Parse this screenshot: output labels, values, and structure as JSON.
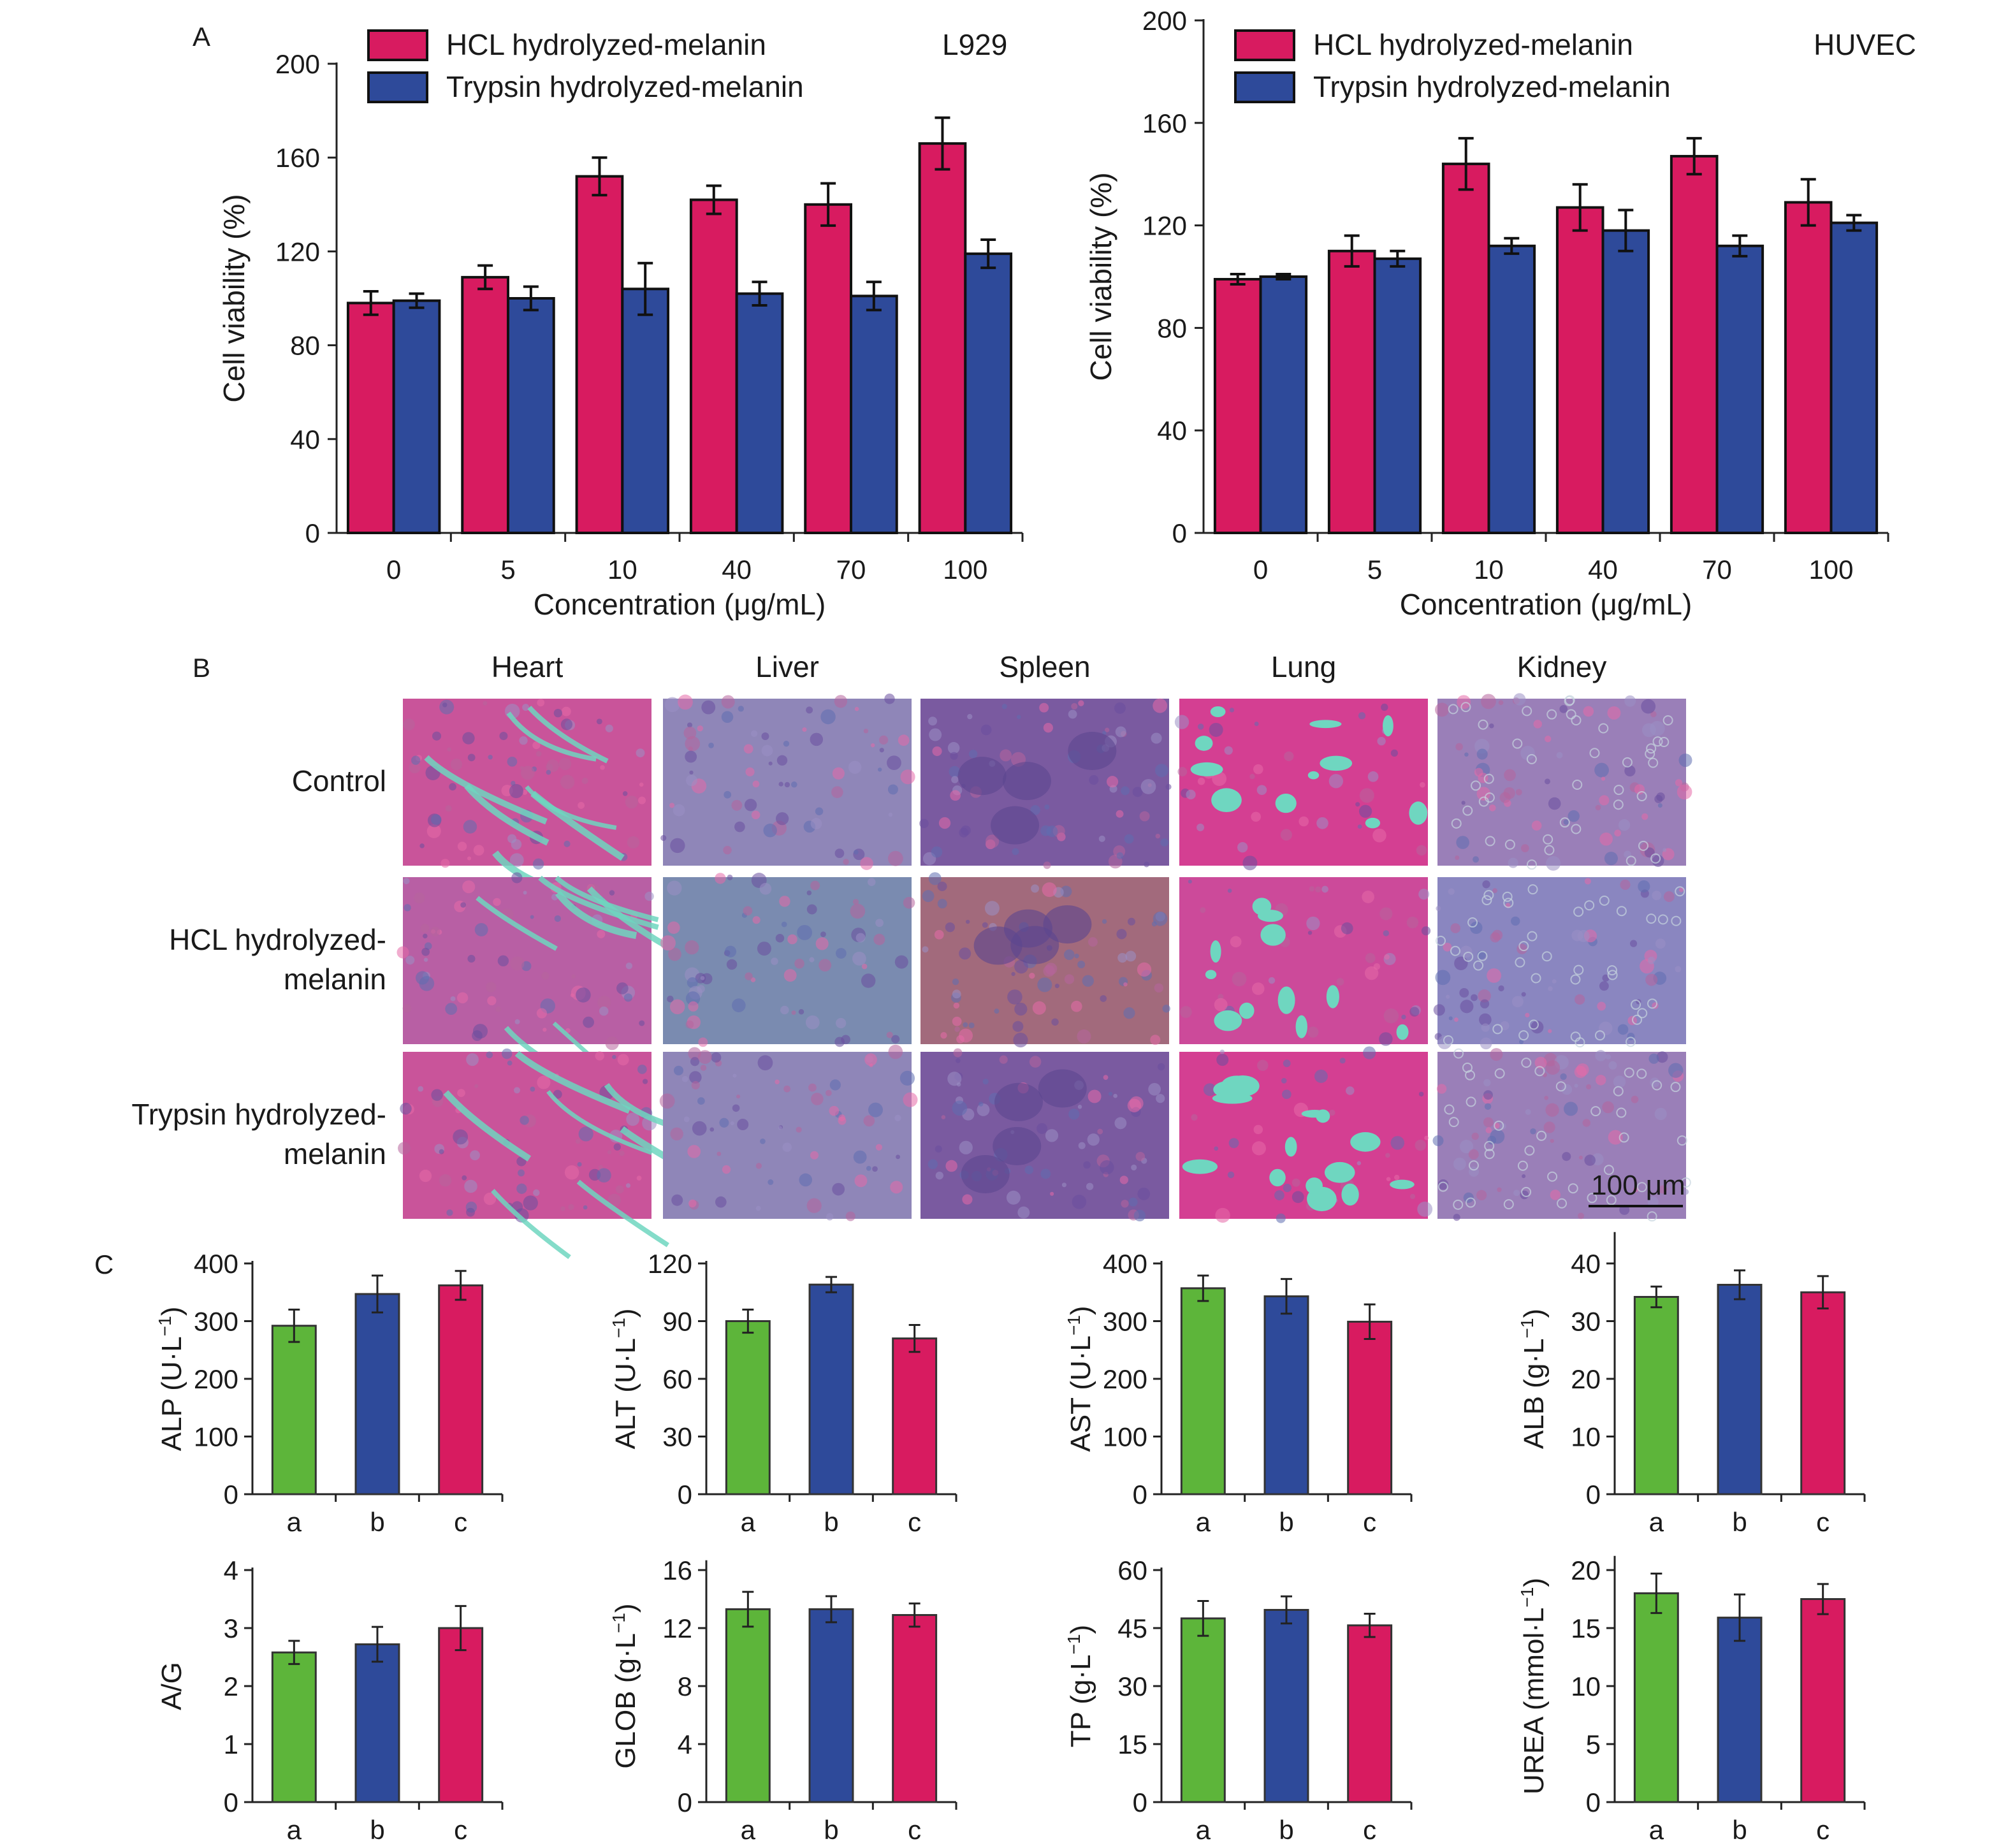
{
  "panels": {
    "A": "A",
    "B": "B",
    "C": "C"
  },
  "colors": {
    "hcl": "#d81b60",
    "trypsin": "#2e4a9a",
    "a": "#5db53a",
    "b": "#2e4a9a",
    "c": "#d81b60",
    "tissue_pink": "#d14a8c",
    "tissue_blue": "#5a5aa8",
    "tissue_gap": "#6fd6c0"
  },
  "chart_data": [
    {
      "type": "bar",
      "cell_line": "L929",
      "xlabel": "Concentration (μg/mL)",
      "ylabel": "Cell viability (%)",
      "categories": [
        "0",
        "5",
        "10",
        "40",
        "70",
        "100"
      ],
      "ylim": [
        0,
        200
      ],
      "yticks": [
        0,
        40,
        80,
        120,
        160,
        200
      ],
      "legend_position": "top",
      "series": [
        {
          "name": "HCL hydrolyzed-melanin",
          "values": [
            98,
            109,
            152,
            142,
            140,
            166
          ],
          "errors": [
            5,
            5,
            8,
            6,
            9,
            11
          ]
        },
        {
          "name": "Trypsin hydrolyzed-melanin",
          "values": [
            99,
            100,
            104,
            102,
            101,
            119
          ],
          "errors": [
            3,
            5,
            11,
            5,
            6,
            6
          ]
        }
      ]
    },
    {
      "type": "bar",
      "cell_line": "HUVEC",
      "xlabel": "Concentration (μg/mL)",
      "ylabel": "Cell viability (%)",
      "categories": [
        "0",
        "5",
        "10",
        "40",
        "70",
        "100"
      ],
      "ylim": [
        0,
        200
      ],
      "yticks": [
        0,
        40,
        80,
        120,
        160,
        200
      ],
      "legend_position": "top",
      "series": [
        {
          "name": "HCL hydrolyzed-melanin",
          "values": [
            99,
            110,
            144,
            127,
            147,
            129
          ],
          "errors": [
            2,
            6,
            10,
            9,
            7,
            9
          ]
        },
        {
          "name": "Trypsin hydrolyzed-melanin",
          "values": [
            100,
            107,
            112,
            118,
            112,
            121
          ],
          "errors": [
            1,
            3,
            3,
            8,
            4,
            3
          ]
        }
      ]
    },
    {
      "type": "bar",
      "ylabel": "ALP (U·L",
      "ysup": "−1",
      "ylabel_end": ")",
      "categories": [
        "a",
        "b",
        "c"
      ],
      "values": [
        292,
        347,
        362
      ],
      "errors": [
        28,
        32,
        25
      ],
      "ylim": [
        0,
        400
      ],
      "yticks": [
        0,
        100,
        200,
        300,
        400
      ]
    },
    {
      "type": "bar",
      "ylabel": "ALT (U·L",
      "ysup": "−1",
      "ylabel_end": ")",
      "categories": [
        "a",
        "b",
        "c"
      ],
      "values": [
        90,
        109,
        81
      ],
      "errors": [
        6,
        4,
        7
      ],
      "ylim": [
        0,
        120
      ],
      "yticks": [
        0,
        30,
        60,
        90,
        120
      ]
    },
    {
      "type": "bar",
      "ylabel": "AST (U·L",
      "ysup": "−1",
      "ylabel_end": ")",
      "categories": [
        "a",
        "b",
        "c"
      ],
      "values": [
        357,
        343,
        299
      ],
      "errors": [
        22,
        30,
        30
      ],
      "ylim": [
        0,
        400
      ],
      "yticks": [
        0,
        100,
        200,
        300,
        400
      ]
    },
    {
      "type": "bar",
      "ylabel": "ALB (g·L",
      "ysup": "−1",
      "ylabel_end": ")",
      "categories": [
        "a",
        "b",
        "c"
      ],
      "values": [
        34.2,
        36.3,
        35.0
      ],
      "errors": [
        1.8,
        2.5,
        2.8
      ],
      "ylim": [
        0,
        45
      ],
      "yticks": [
        0,
        10,
        20,
        30,
        40
      ]
    },
    {
      "type": "bar",
      "ylabel": "A/G",
      "ysup": "",
      "ylabel_end": "",
      "categories": [
        "a",
        "b",
        "c"
      ],
      "values": [
        2.58,
        2.72,
        3.0
      ],
      "errors": [
        0.2,
        0.3,
        0.38
      ],
      "ylim": [
        0,
        4
      ],
      "yticks": [
        0,
        1,
        2,
        3,
        4
      ]
    },
    {
      "type": "bar",
      "ylabel": "GLOB (g·L",
      "ysup": "−1",
      "ylabel_end": ")",
      "categories": [
        "a",
        "b",
        "c"
      ],
      "values": [
        13.3,
        13.3,
        12.9
      ],
      "errors": [
        1.2,
        0.9,
        0.8
      ],
      "ylim": [
        0,
        16.5
      ],
      "yticks": [
        0,
        4,
        8,
        12,
        16
      ]
    },
    {
      "type": "bar",
      "ylabel": "TP (g·L",
      "ysup": "−1",
      "ylabel_end": ")",
      "categories": [
        "a",
        "b",
        "c"
      ],
      "values": [
        47.5,
        49.7,
        45.7
      ],
      "errors": [
        4.5,
        3.5,
        3.0
      ],
      "ylim": [
        0,
        60
      ],
      "yticks": [
        0,
        15,
        30,
        45,
        60
      ]
    },
    {
      "type": "bar",
      "ylabel": "UREA (mmol·L",
      "ysup": "−1",
      "ylabel_end": ")",
      "categories": [
        "a",
        "b",
        "c"
      ],
      "values": [
        18.0,
        15.9,
        17.5
      ],
      "errors": [
        1.7,
        2.0,
        1.3
      ],
      "ylim": [
        0,
        21
      ],
      "yticks": [
        0,
        5,
        10,
        15,
        20
      ]
    }
  ],
  "histology": {
    "columns": [
      "Heart",
      "Liver",
      "Spleen",
      "Lung",
      "Kidney"
    ],
    "rows": [
      {
        "lines": [
          "Control"
        ]
      },
      {
        "lines": [
          "HCL hydrolyzed-",
          "melanin"
        ]
      },
      {
        "lines": [
          "Trypsin hydrolyzed-",
          "melanin"
        ]
      }
    ],
    "scale_bar": "100 μm"
  }
}
